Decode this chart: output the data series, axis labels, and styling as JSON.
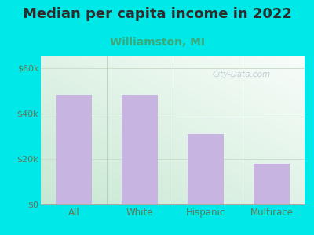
{
  "title": "Median per capita income in 2022",
  "subtitle": "Williamston, MI",
  "categories": [
    "All",
    "White",
    "Hispanic",
    "Multirace"
  ],
  "values": [
    48000,
    48000,
    31000,
    18000
  ],
  "bar_color": "#c8b4e0",
  "background_color": "#00e8e8",
  "title_color": "#2d2d2d",
  "subtitle_color": "#3aaa7a",
  "tick_label_color": "#5a7a5a",
  "ylim": [
    0,
    65000
  ],
  "yticks": [
    0,
    20000,
    40000,
    60000
  ],
  "ytick_labels": [
    "$0",
    "$20k",
    "$40k",
    "$60k"
  ],
  "title_fontsize": 13,
  "subtitle_fontsize": 10,
  "watermark_text": "City-Data.com",
  "watermark_color": "#b8c4cc"
}
